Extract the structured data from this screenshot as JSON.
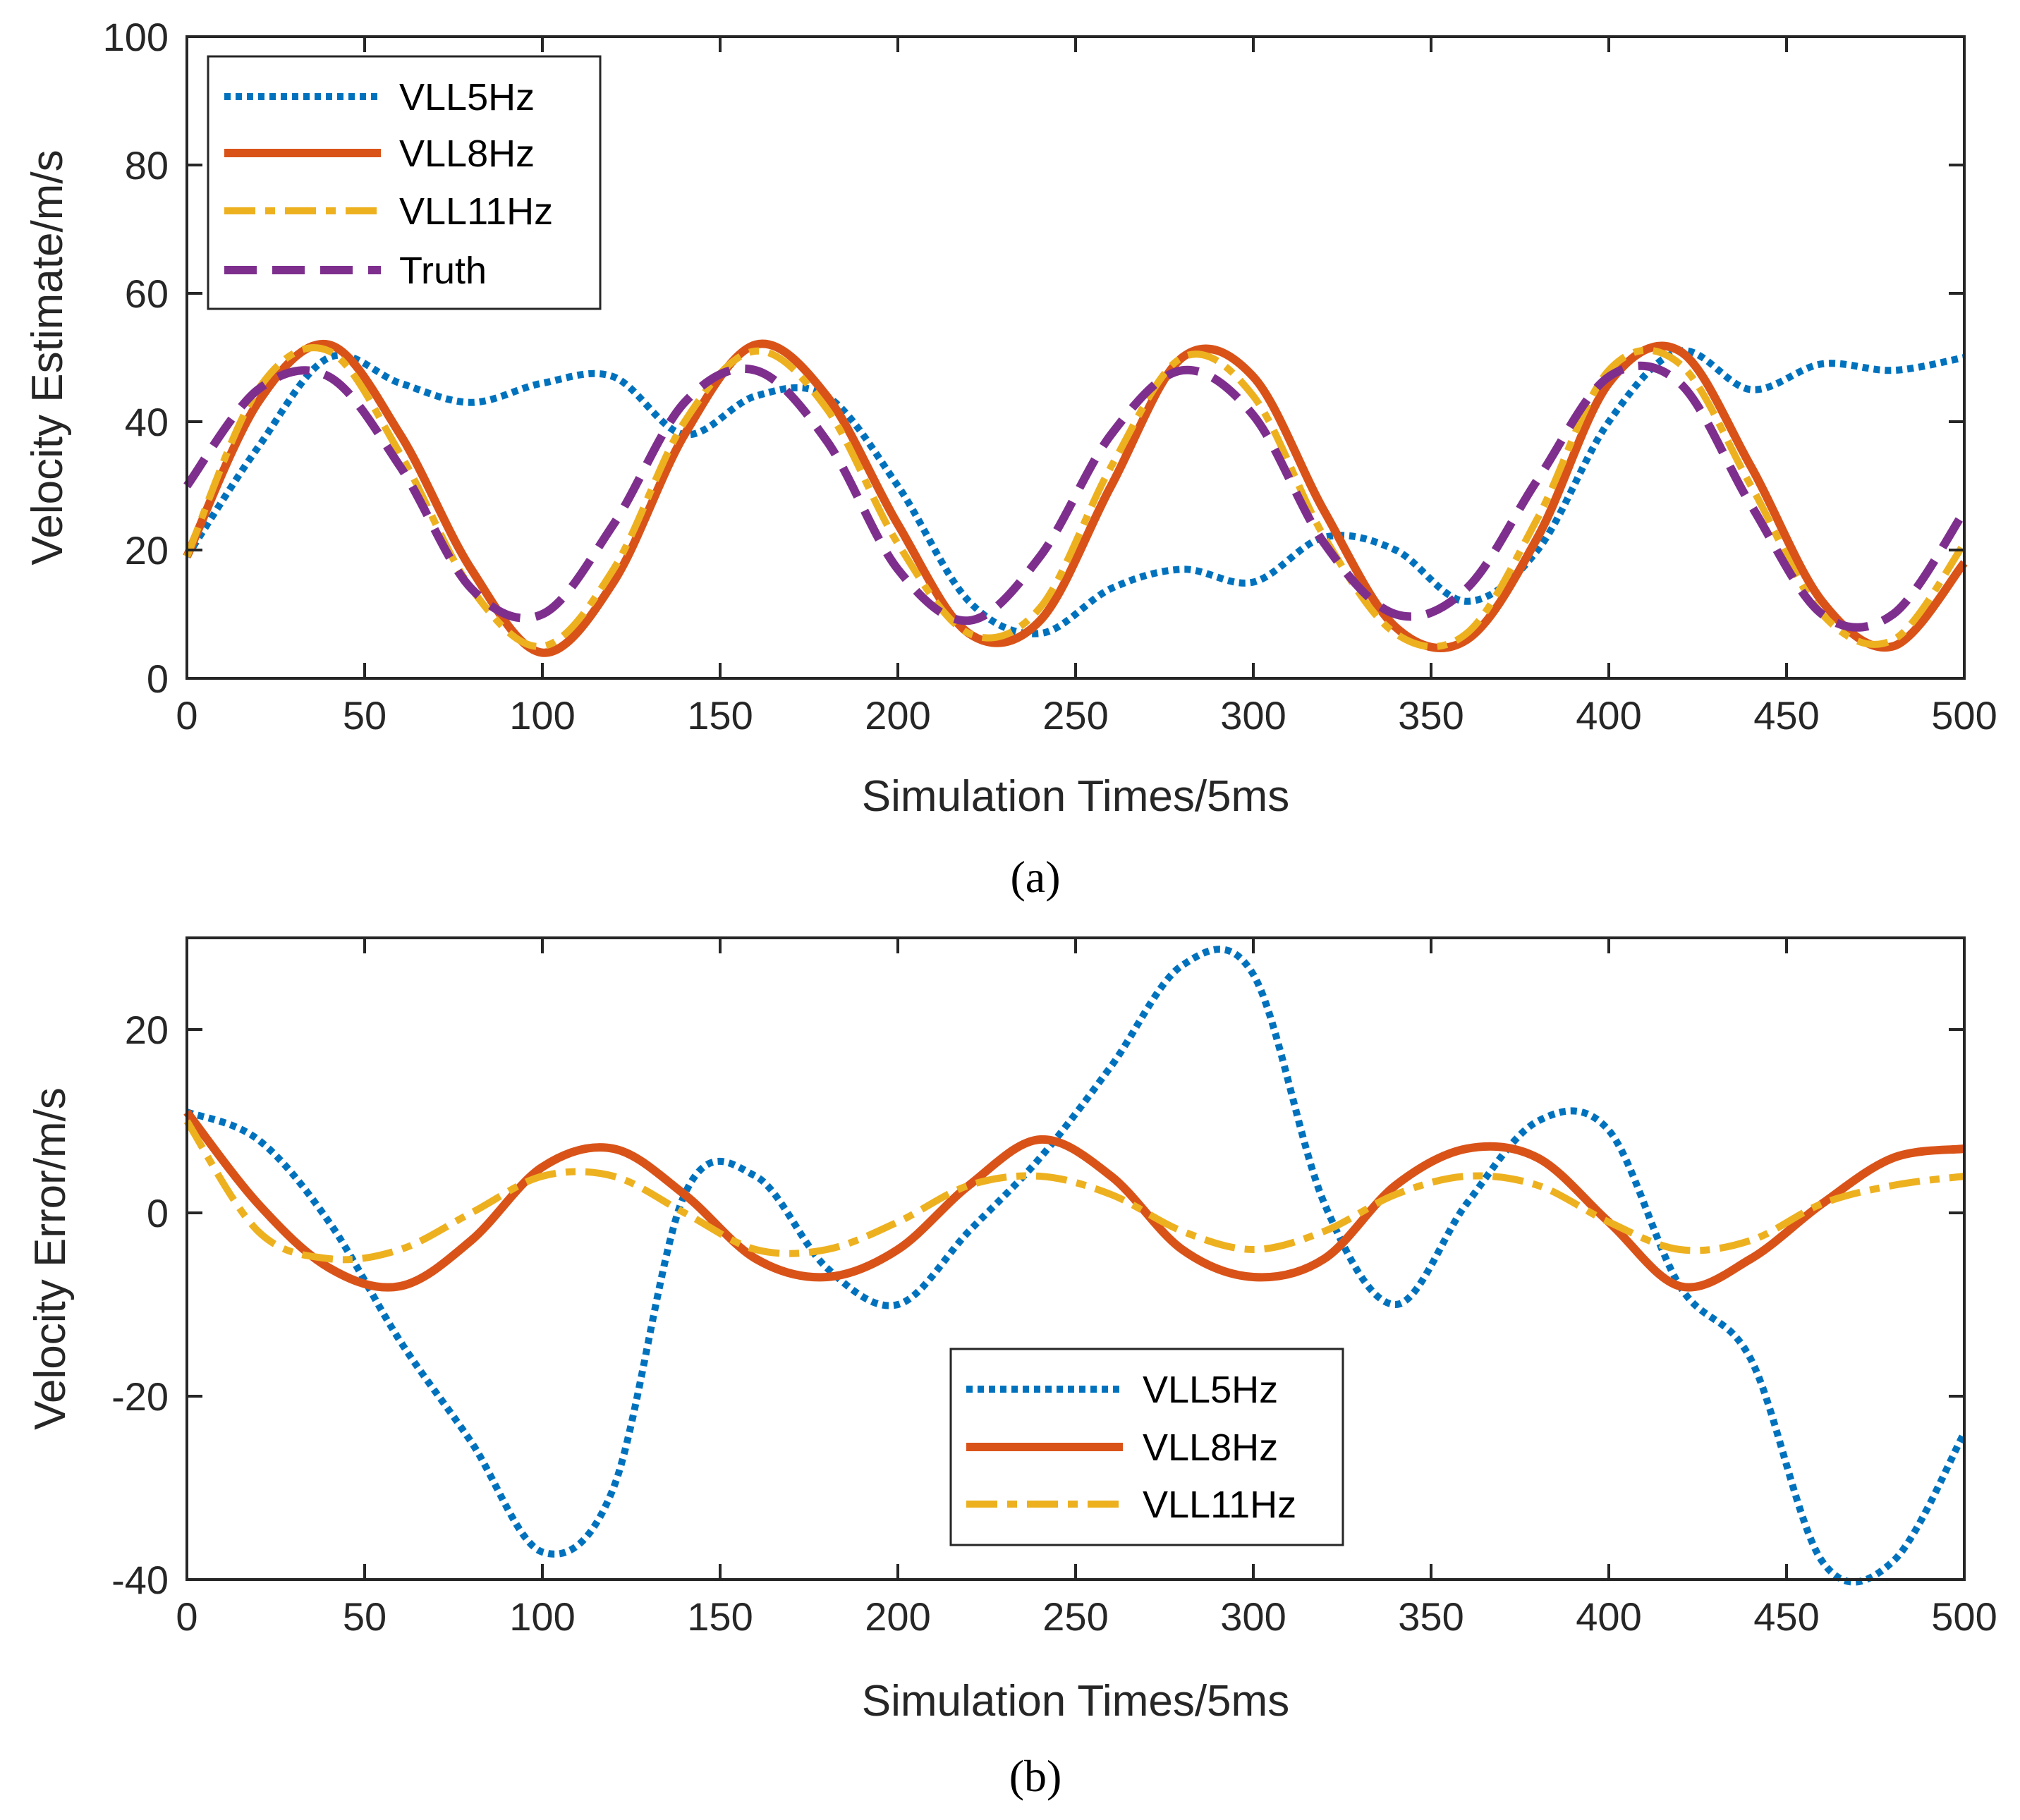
{
  "chart_data": [
    {
      "type": "line",
      "caption": "(a)",
      "xlabel": "Simulation Times/5ms",
      "ylabel": "Velocity Estimate/m/s",
      "xlim": [
        0,
        500
      ],
      "ylim": [
        0,
        100
      ],
      "xticks": [
        "0",
        "50",
        "100",
        "150",
        "200",
        "250",
        "300",
        "350",
        "400",
        "450",
        "500"
      ],
      "yticks": [
        "0",
        "20",
        "40",
        "60",
        "80",
        "100"
      ],
      "grid": false,
      "legend_position": "top-left",
      "x": [
        0,
        20,
        40,
        60,
        80,
        100,
        120,
        140,
        160,
        180,
        200,
        220,
        240,
        260,
        280,
        300,
        320,
        340,
        360,
        380,
        400,
        420,
        440,
        460,
        480,
        500
      ],
      "series": [
        {
          "name": "VLL5Hz",
          "color": "#0072BD",
          "style": "dotted",
          "values": [
            19,
            36,
            50,
            46,
            43,
            46,
            47,
            38,
            44,
            44,
            30,
            12,
            7,
            14,
            17,
            15,
            22,
            20,
            12,
            20,
            40,
            51,
            45,
            49,
            48,
            50
          ]
        },
        {
          "name": "VLL8Hz",
          "color": "#D95319",
          "style": "solid",
          "values": [
            19,
            43,
            52,
            38,
            17,
            4,
            15,
            38,
            52,
            44,
            24,
            7,
            9,
            30,
            50,
            47,
            26,
            8,
            6,
            22,
            46,
            51,
            33,
            12,
            5,
            18
          ]
        },
        {
          "name": "VLL11Hz",
          "color": "#EDB120",
          "style": "dashdot",
          "values": [
            19,
            45,
            51,
            35,
            14,
            5,
            17,
            40,
            51,
            42,
            21,
            7,
            11,
            33,
            50,
            44,
            22,
            7,
            7,
            25,
            48,
            49,
            30,
            10,
            6,
            21
          ]
        },
        {
          "name": "Truth",
          "color": "#7E2F8E",
          "style": "dashed",
          "values": [
            30,
            45,
            47,
            33,
            14,
            10,
            24,
            43,
            48,
            37,
            17,
            9,
            19,
            38,
            48,
            41,
            21,
            10,
            14,
            31,
            47,
            46,
            27,
            10,
            10,
            26
          ]
        }
      ]
    },
    {
      "type": "line",
      "caption": "(b)",
      "xlabel": "Simulation Times/5ms",
      "ylabel": "Velocity Error/m/s",
      "xlim": [
        0,
        500
      ],
      "ylim": [
        -40,
        30
      ],
      "xticks": [
        "0",
        "50",
        "100",
        "150",
        "200",
        "250",
        "300",
        "350",
        "400",
        "450",
        "500"
      ],
      "yticks": [
        "-40",
        "-20",
        "0",
        "20"
      ],
      "grid": false,
      "legend_position": "bottom-center",
      "x": [
        0,
        20,
        40,
        60,
        80,
        100,
        120,
        140,
        160,
        180,
        200,
        220,
        240,
        260,
        280,
        300,
        320,
        340,
        360,
        380,
        400,
        420,
        440,
        460,
        480,
        500
      ],
      "series": [
        {
          "name": "VLL5Hz",
          "color": "#0072BD",
          "style": "dotted",
          "values": [
            11,
            8,
            -1,
            -14,
            -25,
            -37,
            -30,
            2,
            4,
            -6,
            -10,
            -2,
            6,
            16,
            27,
            26,
            1,
            -10,
            1,
            10,
            9,
            -8,
            -16,
            -38,
            -38,
            -24
          ]
        },
        {
          "name": "VLL8Hz",
          "color": "#D95319",
          "style": "solid",
          "values": [
            11,
            1,
            -6,
            -8,
            -3,
            5,
            7,
            2,
            -5,
            -7,
            -4,
            3,
            8,
            4,
            -4,
            -7,
            -5,
            3,
            7,
            6,
            -1,
            -8,
            -5,
            1,
            6,
            7
          ]
        },
        {
          "name": "VLL11Hz",
          "color": "#EDB120",
          "style": "dashdot",
          "values": [
            10,
            -2,
            -5,
            -4,
            0,
            4,
            4,
            0,
            -4,
            -4,
            -1,
            3,
            4,
            2,
            -2,
            -4,
            -2,
            2,
            4,
            3,
            -1,
            -4,
            -3,
            1,
            3,
            4
          ]
        }
      ]
    }
  ]
}
